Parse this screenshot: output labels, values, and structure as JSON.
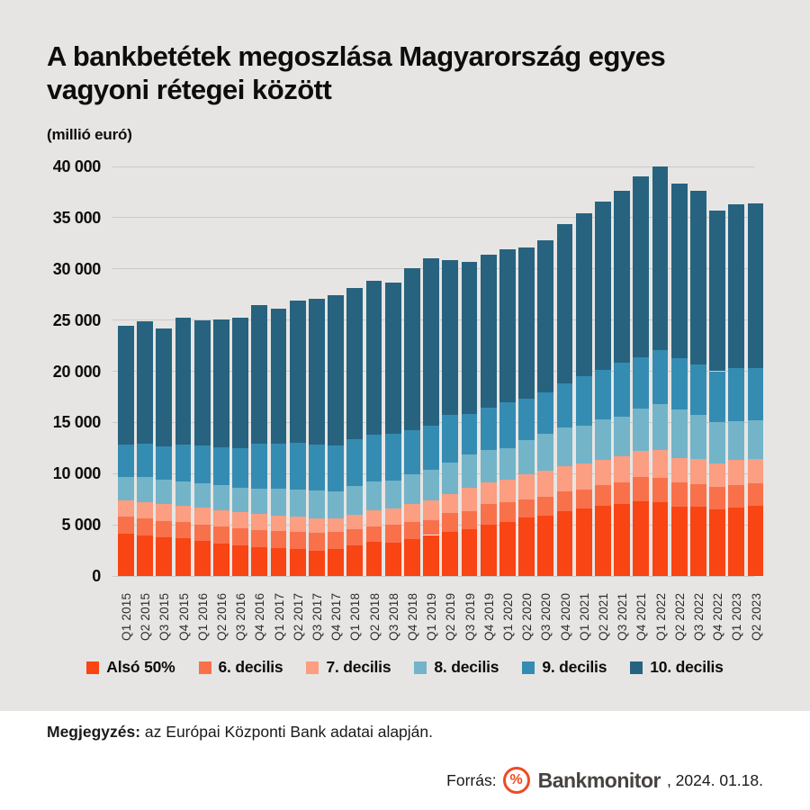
{
  "title": "A bankbetétek megoszlása Magyarország egyes vagyoni rétegei között",
  "subtitle": "(millió euró)",
  "chart_data": {
    "type": "bar",
    "stacked": true,
    "title": "A bankbetétek megoszlása Magyarország egyes vagyoni rétegei között",
    "ylabel": "(millió euró)",
    "ylim": [
      0,
      40000
    ],
    "ytick_values": [
      0,
      5000,
      10000,
      15000,
      20000,
      25000,
      30000,
      35000,
      40000
    ],
    "ytick_labels": [
      "0",
      "5 000",
      "10 000",
      "15 000",
      "20 000",
      "25 000",
      "30 000",
      "35 000",
      "40 000"
    ],
    "grid": true,
    "legend_position": "bottom",
    "categories": [
      "Q1 2015",
      "Q2 2015",
      "Q3 2015",
      "Q4 2015",
      "Q1 2016",
      "Q2 2016",
      "Q3 2016",
      "Q4 2016",
      "Q1 2017",
      "Q2 2017",
      "Q3 2017",
      "Q4 2017",
      "Q1 2018",
      "Q2 2018",
      "Q3 2018",
      "Q4 2018",
      "Q1 2019",
      "Q2 2019",
      "Q3 2019",
      "Q4 2019",
      "Q1 2020",
      "Q2 2020",
      "Q3 2020",
      "Q4 2020",
      "Q1 2021",
      "Q2 2021",
      "Q3 2021",
      "Q4 2021",
      "Q1 2022",
      "Q2 2022",
      "Q3 2022",
      "Q4 2022",
      "Q1 2023",
      "Q2 2023"
    ],
    "series": [
      {
        "name": "Alsó 50%",
        "color": "#f94414",
        "values": [
          4150,
          3950,
          3750,
          3650,
          3450,
          3200,
          3000,
          2850,
          2700,
          2600,
          2450,
          2650,
          3000,
          3300,
          3250,
          3600,
          4000,
          4300,
          4600,
          5050,
          5300,
          5700,
          5850,
          6300,
          6600,
          6900,
          7050,
          7300,
          7250,
          6800,
          6750,
          6500,
          6700,
          6900
        ]
      },
      {
        "name": "6. decilis",
        "color": "#f9714b",
        "values": [
          1650,
          1650,
          1650,
          1650,
          1550,
          1650,
          1650,
          1600,
          1700,
          1750,
          1750,
          1650,
          1550,
          1550,
          1800,
          1700,
          1450,
          1850,
          1700,
          2000,
          1950,
          1750,
          1900,
          1950,
          1850,
          1950,
          2050,
          2350,
          2350,
          2300,
          2200,
          2200,
          2150,
          2150
        ]
      },
      {
        "name": "7. decilis",
        "color": "#fb9e82",
        "values": [
          1600,
          1650,
          1650,
          1600,
          1700,
          1600,
          1550,
          1650,
          1450,
          1450,
          1400,
          1350,
          1400,
          1550,
          1550,
          1750,
          1950,
          1850,
          2300,
          2050,
          2150,
          2450,
          2550,
          2450,
          2550,
          2500,
          2600,
          2600,
          2700,
          2400,
          2450,
          2300,
          2450,
          2350
        ]
      },
      {
        "name": "8. decilis",
        "color": "#74b4c9",
        "values": [
          2250,
          2400,
          2350,
          2350,
          2350,
          2400,
          2450,
          2400,
          2650,
          2650,
          2750,
          2600,
          2850,
          2800,
          2750,
          2850,
          3000,
          3100,
          3300,
          3250,
          3100,
          3350,
          3600,
          3800,
          3700,
          3950,
          3850,
          4100,
          4500,
          4800,
          4300,
          4000,
          3800,
          3850
        ]
      },
      {
        "name": "9. decilis",
        "color": "#358cb2",
        "values": [
          3200,
          3250,
          3250,
          3600,
          3700,
          3750,
          3800,
          4450,
          4400,
          4600,
          4500,
          4500,
          4550,
          4600,
          4500,
          4300,
          4250,
          4600,
          3950,
          4050,
          4450,
          4050,
          4050,
          4300,
          4800,
          4850,
          5250,
          5050,
          5250,
          4950,
          5000,
          5000,
          5200,
          5100
        ]
      },
      {
        "name": "10. decilis",
        "color": "#27637f",
        "values": [
          11550,
          12000,
          11500,
          12350,
          12250,
          12450,
          12800,
          13500,
          13250,
          13850,
          14250,
          14700,
          14750,
          15000,
          14800,
          15900,
          16400,
          15150,
          14850,
          14950,
          14950,
          14800,
          14850,
          15600,
          15900,
          16400,
          16850,
          17600,
          17950,
          17050,
          16900,
          15700,
          16000,
          16050
        ]
      }
    ]
  },
  "note": {
    "label": "Megjegyzés:",
    "text": " az Európai Központi Bank adatai alapján."
  },
  "source": {
    "label": "Forrás:",
    "logo_glyph": "%",
    "brand": "Bankmonitor",
    "suffix": ", 2024. 01.18."
  },
  "colors": {
    "background": "#e7e5e3",
    "footer_background": "#ffffff",
    "gridline": "#cac9c7",
    "accent": "#ee4b23",
    "brand_text": "#474340"
  }
}
